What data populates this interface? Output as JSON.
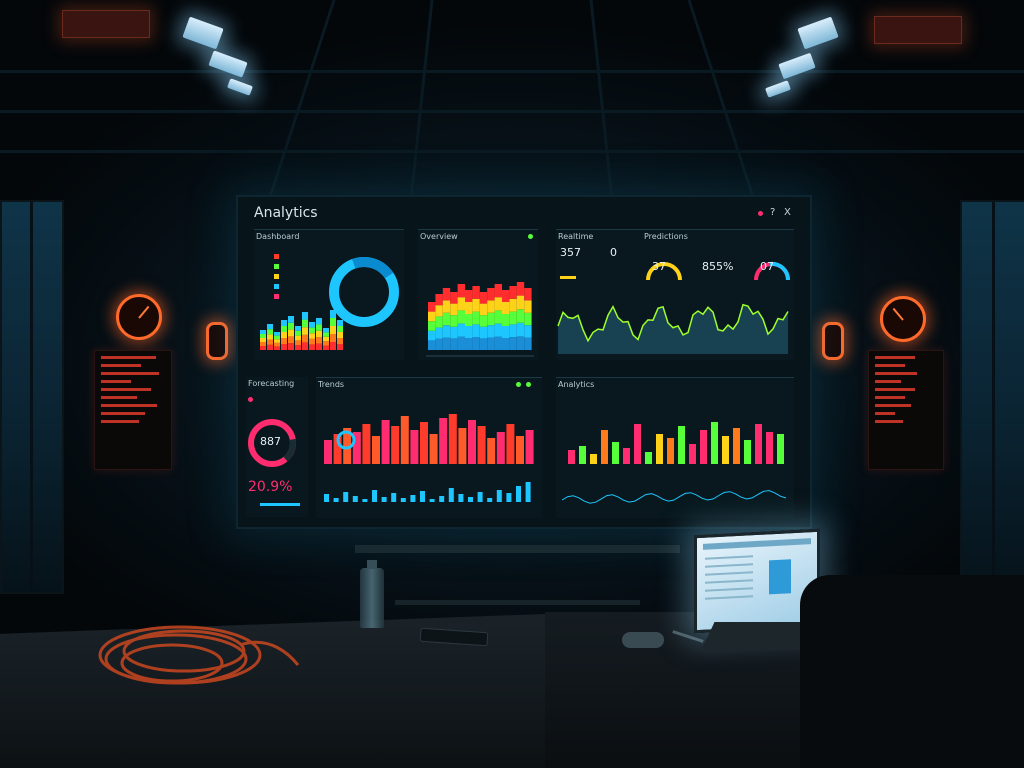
{
  "screen": {
    "title": "Analytics",
    "window_controls": [
      "?",
      "X"
    ],
    "panel_a_title": "Dashboard",
    "panel_a_sub": "Overview",
    "panel_b_title": "Overview",
    "panel_c_title": "Realtime",
    "panel_d_title": "Predictions",
    "panel_e_title": "Forecasting",
    "panel_f_title": "Trends",
    "panel_g_title": "Analytics"
  },
  "metrics": {
    "kpi_1": "357",
    "kpi_1_alt": "0",
    "kpi_2": "37",
    "kpi_3": "855%",
    "kpi_4": "07",
    "donut_value": "887",
    "percent": "20.9%"
  },
  "colors": {
    "accent_cyan": "#1ec6ff",
    "accent_pink": "#ff2d6f",
    "accent_green": "#57ff3a",
    "accent_orange": "#ff7a1a",
    "accent_yellow": "#ffd21a"
  },
  "icons": [
    "ceiling-light-icon",
    "vent-icon",
    "gauge-icon",
    "water-bottle-icon",
    "laptop-icon",
    "phone-icon",
    "mouse-icon",
    "cable-coil-icon"
  ]
}
